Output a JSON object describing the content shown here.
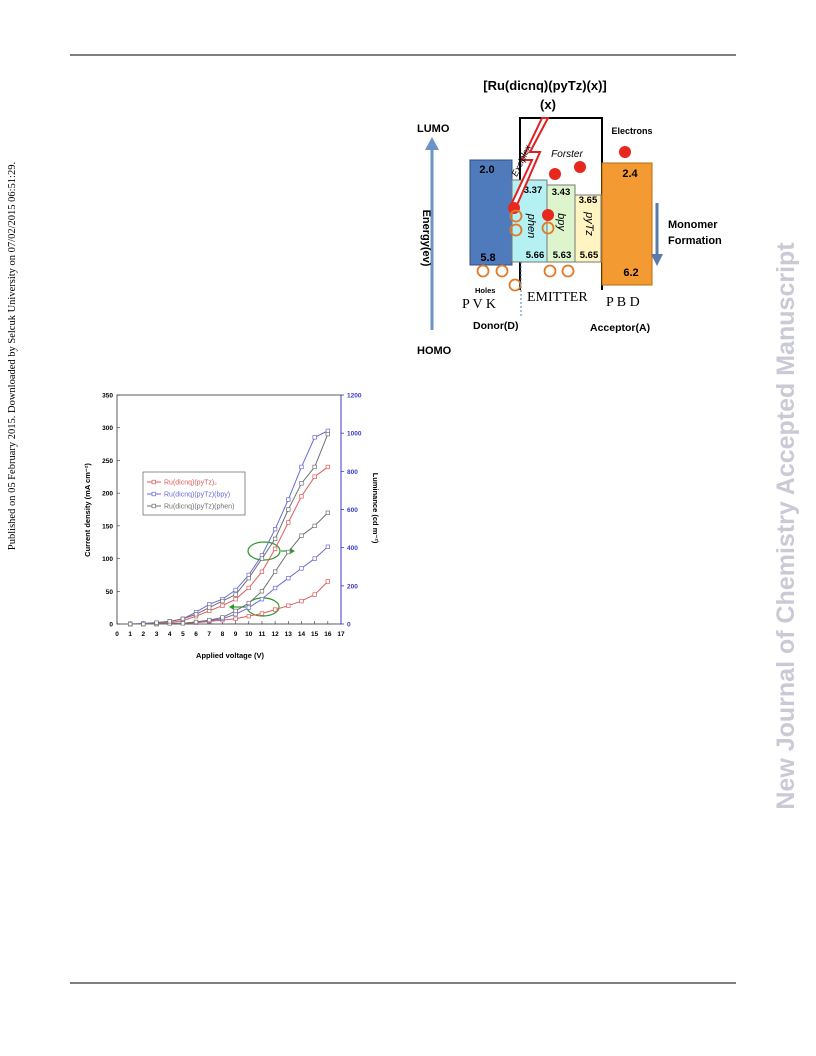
{
  "page": {
    "sidebar": "Published on 05 February 2015. Downloaded by Selcuk University on 07/02/2015 06:51:29.",
    "watermark": "New Journal of Chemistry Accepted Manuscript"
  },
  "energy_diagram": {
    "title": "[Ru(dicnq)(pyTz)(x)]",
    "subtitle": "(x)",
    "lumo": "LUMO",
    "homo": "HOMO",
    "axis_label": "Energy(ev)",
    "donor": {
      "lumo": "2.0",
      "homo": "5.8",
      "carriers": "Holes",
      "name": "P V K",
      "role": "Donor(D)"
    },
    "emitter": {
      "name": "EMITTER",
      "ligands": [
        {
          "name": "phen",
          "lumo": "3.37",
          "homo": "5.66"
        },
        {
          "name": "bpy",
          "lumo": "3.43",
          "homo": "5.63"
        },
        {
          "name": "pyTz",
          "lumo": "3.65",
          "homo": "5.65"
        }
      ]
    },
    "acceptor": {
      "lumo": "2.4",
      "homo": "6.2",
      "carriers": "Electrons",
      "name": "P B D",
      "role": "Acceptor(A)"
    },
    "exciplex": "Exciplex",
    "forster": "Forster",
    "monomer": [
      "Monomer",
      "Formation"
    ]
  },
  "chart_data": {
    "type": "line",
    "x_label": "Applied voltage (V)",
    "y_label": "Current density (mA cm⁻²)",
    "y2_label": "Luminance (cd m⁻²)",
    "x": [
      1,
      2,
      3,
      4,
      5,
      6,
      7,
      8,
      9,
      10,
      11,
      12,
      13,
      14,
      15,
      16
    ],
    "series": [
      {
        "name": "Ru(dicnq)(pyTz)₂",
        "color": "#e05a5a",
        "current_density": [
          0,
          0,
          0,
          1,
          1,
          2,
          4,
          6,
          8,
          12,
          16,
          22,
          28,
          35,
          45,
          65
        ],
        "luminance": [
          0,
          0,
          3,
          7,
          17,
          41,
          69,
          96,
          130,
          189,
          274,
          394,
          532,
          669,
          772,
          823
        ]
      },
      {
        "name": "Ru(dicnq)(pyTz)(bpy)",
        "color": "#6a6ad8",
        "current_density": [
          0,
          0,
          0,
          1,
          1,
          3,
          5,
          8,
          15,
          25,
          38,
          55,
          70,
          85,
          100,
          118
        ],
        "luminance": [
          0,
          3,
          7,
          14,
          27,
          62,
          103,
          130,
          178,
          257,
          360,
          497,
          652,
          823,
          978,
          1012
        ]
      },
      {
        "name": "Ru(dicnq)(pyTz)(phen)",
        "color": "#707070",
        "current_density": [
          0,
          0,
          0,
          1,
          1,
          3,
          6,
          10,
          20,
          32,
          50,
          80,
          110,
          135,
          150,
          170
        ],
        "luminance": [
          0,
          0,
          7,
          14,
          27,
          51,
          86,
          120,
          154,
          240,
          343,
          446,
          600,
          737,
          823,
          995
        ]
      }
    ],
    "xlim": [
      0,
      17
    ],
    "xticks": [
      0,
      1,
      2,
      3,
      4,
      5,
      6,
      7,
      8,
      9,
      10,
      11,
      12,
      13,
      14,
      15,
      16,
      17
    ],
    "ylim": [
      0,
      350
    ],
    "yticks": [
      0,
      50,
      100,
      150,
      200,
      250,
      300,
      350
    ],
    "y2lim": [
      0,
      1200
    ],
    "y2ticks": [
      0,
      200,
      400,
      600,
      800,
      1000,
      1200
    ],
    "y2_color": "#3a3ac8"
  }
}
